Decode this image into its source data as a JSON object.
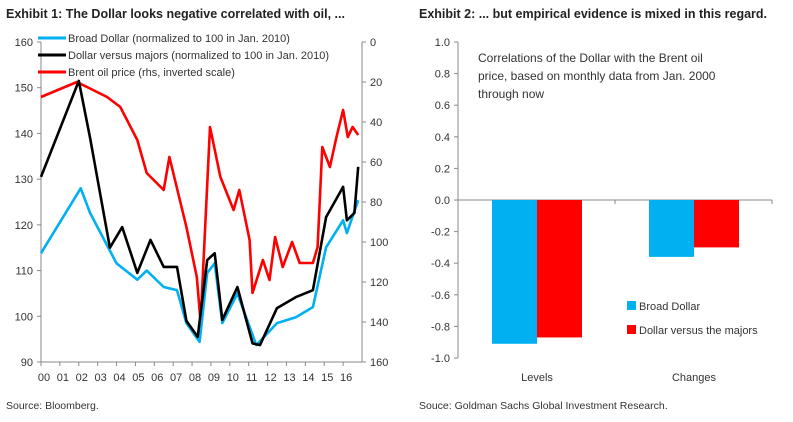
{
  "chart_data": [
    {
      "type": "line",
      "title": "Exhibit 1: The Dollar looks negative correlated with oil, ...",
      "source": "Source: Bloomberg.",
      "x_tick_labels": [
        "00",
        "01",
        "02",
        "03",
        "04",
        "05",
        "06",
        "07",
        "08",
        "09",
        "10",
        "11",
        "12",
        "13",
        "14",
        "15",
        "16"
      ],
      "xlim": [
        2000,
        2017
      ],
      "ylim": [
        90,
        160
      ],
      "y_ticks": [
        "160",
        "150",
        "140",
        "130",
        "120",
        "110",
        "100",
        "90"
      ],
      "y2lim": [
        0,
        160
      ],
      "y2_inverted": true,
      "y2_ticks": [
        "0",
        "20",
        "40",
        "60",
        "80",
        "100",
        "120",
        "140",
        "160"
      ],
      "grid": false,
      "legend_position": "top-left",
      "series": [
        {
          "name": "Broad Dollar (normalized to 100 in Jan. 2010)",
          "color": "#00b0f0",
          "axis": "left",
          "x": [
            2000.0,
            2002.1,
            2002.6,
            2004.0,
            2005.1,
            2005.6,
            2006.5,
            2007.2,
            2007.7,
            2008.4,
            2008.8,
            2009.2,
            2009.6,
            2010.4,
            2011.4,
            2012.5,
            2013.5,
            2014.4,
            2015.1,
            2016.0,
            2016.2,
            2016.8
          ],
          "y": [
            113.8,
            128,
            122.6,
            111.6,
            108,
            110,
            106.4,
            105.7,
            98.5,
            94.4,
            109.5,
            111.6,
            98.5,
            105,
            93.7,
            98.5,
            99.8,
            102,
            115.1,
            121,
            118.2,
            125.4
          ]
        },
        {
          "name": "Dollar versus majors (normalized to 100 in Jan. 2010)",
          "color": "#000000",
          "axis": "left",
          "x": [
            2000.0,
            2002.0,
            2002.6,
            2003.65,
            2004.3,
            2005.1,
            2005.8,
            2006.5,
            2007.2,
            2007.7,
            2008.3,
            2008.8,
            2009.2,
            2009.6,
            2010.4,
            2011.2,
            2011.6,
            2012.5,
            2013.5,
            2014.4,
            2015.1,
            2016.0,
            2016.2,
            2016.6,
            2016.8
          ],
          "y": [
            130.5,
            151.5,
            139,
            115,
            119.5,
            109.5,
            116.7,
            110.8,
            110.8,
            99,
            95.5,
            112.3,
            113.8,
            99.2,
            106.4,
            94.1,
            93.7,
            101.8,
            104.2,
            105.7,
            121.7,
            128.3,
            121,
            122.6,
            132.7
          ]
        },
        {
          "name": "Brent oil price (rhs, inverted scale)",
          "color": "#ff0000",
          "axis": "right",
          "x": [
            2000.0,
            2001.9,
            2003.5,
            2004.2,
            2005.1,
            2005.6,
            2006.5,
            2006.8,
            2007.7,
            2008.25,
            2008.45,
            2008.95,
            2009.5,
            2010.2,
            2010.5,
            2011.05,
            2011.2,
            2011.75,
            2012.1,
            2012.4,
            2012.8,
            2013.3,
            2013.7,
            2014.4,
            2014.65,
            2014.9,
            2015.3,
            2015.65,
            2016.0,
            2016.25,
            2016.5,
            2016.8
          ],
          "y": [
            27.5,
            20,
            27.5,
            32.5,
            49,
            65.5,
            74,
            57.5,
            92.5,
            117.5,
            140,
            42.5,
            67.5,
            84,
            74,
            99,
            125.5,
            109,
            119,
            97.5,
            112.5,
            100,
            110.5,
            110.5,
            102.5,
            52.5,
            62.5,
            47.5,
            34,
            47.5,
            42.5,
            46.5
          ]
        }
      ]
    },
    {
      "type": "bar",
      "title": "Exhibit 2: ... but empirical evidence is mixed in this regard.",
      "annotation": [
        "Correlations of the Dollar with the Brent oil",
        "price, based on monthly data from Jan. 2000",
        "through now"
      ],
      "source": "Souce: Goldman Sachs Global Investment Research.",
      "categories": [
        "Levels",
        "Changes"
      ],
      "ylim": [
        -1.0,
        1.0
      ],
      "y_ticks": [
        "1.0",
        "0.8",
        "0.6",
        "0.4",
        "0.2",
        "0.0",
        "-0.2",
        "-0.4",
        "-0.6",
        "-0.8",
        "-1.0"
      ],
      "grid": false,
      "legend_position": "bottom-right",
      "series": [
        {
          "name": "Broad Dollar",
          "color": "#00b0f0",
          "values": [
            -0.91,
            -0.36
          ]
        },
        {
          "name": "Dollar versus the majors",
          "color": "#ff0000",
          "values": [
            -0.87,
            -0.3
          ]
        }
      ]
    }
  ]
}
